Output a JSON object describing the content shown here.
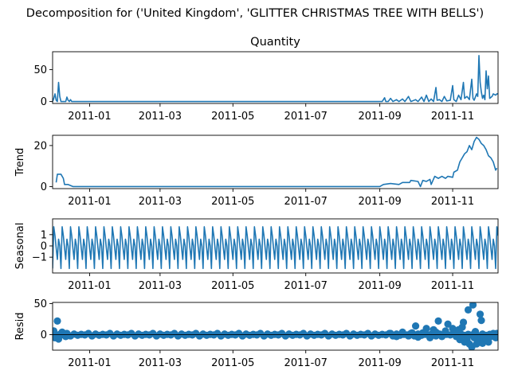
{
  "suptitle": "Decomposition for ('United Kingdom', 'GLITTER CHRISTMAS TREE WITH BELLS')",
  "colors": {
    "line": "#1f77b4",
    "axis": "#000000",
    "background": "#ffffff"
  },
  "x_tick_labels": [
    "2011-01",
    "2011-03",
    "2011-05",
    "2011-07",
    "2011-09",
    "2011-11"
  ],
  "chart_data": [
    {
      "type": "line",
      "title": "Quantity",
      "ylabel": "",
      "x_range": [
        "2010-12-01",
        "2011-12-09"
      ],
      "ylim": [
        -3,
        78
      ],
      "yticks": [
        0,
        50
      ],
      "x_ticks": [
        "2011-01-01",
        "2011-03-01",
        "2011-05-01",
        "2011-07-01",
        "2011-09-01",
        "2011-11-01"
      ],
      "series": [
        {
          "points": [
            [
              "2010-12-01",
              0
            ],
            [
              "2010-12-02",
              5
            ],
            [
              "2010-12-03",
              12
            ],
            [
              "2010-12-04",
              2
            ],
            [
              "2010-12-05",
              0
            ],
            [
              "2010-12-06",
              30
            ],
            [
              "2010-12-07",
              8
            ],
            [
              "2010-12-08",
              0
            ],
            [
              "2010-12-09",
              0
            ],
            [
              "2010-12-10",
              0
            ],
            [
              "2010-12-11",
              0
            ],
            [
              "2010-12-12",
              0
            ],
            [
              "2010-12-13",
              7
            ],
            [
              "2010-12-14",
              2
            ],
            [
              "2010-12-15",
              0
            ],
            [
              "2010-12-16",
              3
            ],
            [
              "2010-12-17",
              0
            ],
            [
              "2010-12-18",
              0
            ],
            [
              "2011-09-03",
              0
            ],
            [
              "2011-09-05",
              6
            ],
            [
              "2011-09-06",
              0
            ],
            [
              "2011-09-08",
              0
            ],
            [
              "2011-09-10",
              5
            ],
            [
              "2011-09-12",
              0
            ],
            [
              "2011-09-15",
              3
            ],
            [
              "2011-09-17",
              0
            ],
            [
              "2011-09-20",
              4
            ],
            [
              "2011-09-22",
              0
            ],
            [
              "2011-09-25",
              8
            ],
            [
              "2011-09-27",
              0
            ],
            [
              "2011-10-01",
              3
            ],
            [
              "2011-10-03",
              0
            ],
            [
              "2011-10-06",
              7
            ],
            [
              "2011-10-08",
              0
            ],
            [
              "2011-10-10",
              10
            ],
            [
              "2011-10-12",
              0
            ],
            [
              "2011-10-14",
              4
            ],
            [
              "2011-10-16",
              0
            ],
            [
              "2011-10-18",
              22
            ],
            [
              "2011-10-19",
              2
            ],
            [
              "2011-10-21",
              3
            ],
            [
              "2011-10-23",
              0
            ],
            [
              "2011-10-25",
              8
            ],
            [
              "2011-10-27",
              1
            ],
            [
              "2011-10-30",
              2
            ],
            [
              "2011-11-01",
              25
            ],
            [
              "2011-11-02",
              3
            ],
            [
              "2011-11-04",
              0
            ],
            [
              "2011-11-06",
              10
            ],
            [
              "2011-11-08",
              3
            ],
            [
              "2011-11-10",
              30
            ],
            [
              "2011-11-11",
              5
            ],
            [
              "2011-11-13",
              8
            ],
            [
              "2011-11-15",
              3
            ],
            [
              "2011-11-17",
              35
            ],
            [
              "2011-11-18",
              5
            ],
            [
              "2011-11-19",
              2
            ],
            [
              "2011-11-21",
              12
            ],
            [
              "2011-11-22",
              8
            ],
            [
              "2011-11-23",
              72
            ],
            [
              "2011-11-24",
              30
            ],
            [
              "2011-11-25",
              15
            ],
            [
              "2011-11-26",
              5
            ],
            [
              "2011-11-27",
              10
            ],
            [
              "2011-11-28",
              3
            ],
            [
              "2011-11-29",
              48
            ],
            [
              "2011-11-30",
              20
            ],
            [
              "2011-12-01",
              40
            ],
            [
              "2011-12-02",
              5
            ],
            [
              "2011-12-04",
              8
            ],
            [
              "2011-12-05",
              12
            ],
            [
              "2011-12-07",
              10
            ],
            [
              "2011-12-08",
              12
            ],
            [
              "2011-12-09",
              12
            ]
          ]
        }
      ]
    },
    {
      "type": "line",
      "title": "",
      "ylabel": "Trend",
      "x_range": [
        "2010-12-01",
        "2011-12-09"
      ],
      "ylim": [
        -1,
        25
      ],
      "yticks": [
        0,
        20
      ],
      "x_ticks": [
        "2011-01-01",
        "2011-03-01",
        "2011-05-01",
        "2011-07-01",
        "2011-09-01",
        "2011-11-01"
      ],
      "series": [
        {
          "points": [
            [
              "2010-12-04",
              2
            ],
            [
              "2010-12-05",
              6
            ],
            [
              "2010-12-08",
              6
            ],
            [
              "2010-12-10",
              4
            ],
            [
              "2010-12-11",
              1
            ],
            [
              "2010-12-14",
              1
            ],
            [
              "2010-12-16",
              0.5
            ],
            [
              "2010-12-18",
              0
            ],
            [
              "2011-09-01",
              0
            ],
            [
              "2011-09-04",
              1
            ],
            [
              "2011-09-10",
              1.5
            ],
            [
              "2011-09-17",
              1
            ],
            [
              "2011-09-20",
              2
            ],
            [
              "2011-09-26",
              2
            ],
            [
              "2011-09-27",
              3
            ],
            [
              "2011-10-03",
              2.5
            ],
            [
              "2011-10-05",
              0
            ],
            [
              "2011-10-07",
              3
            ],
            [
              "2011-10-10",
              2.5
            ],
            [
              "2011-10-13",
              3.5
            ],
            [
              "2011-10-14",
              1
            ],
            [
              "2011-10-17",
              5
            ],
            [
              "2011-10-20",
              4
            ],
            [
              "2011-10-23",
              5
            ],
            [
              "2011-10-26",
              4
            ],
            [
              "2011-10-28",
              5
            ],
            [
              "2011-11-01",
              4.5
            ],
            [
              "2011-11-02",
              7
            ],
            [
              "2011-11-05",
              8
            ],
            [
              "2011-11-07",
              12
            ],
            [
              "2011-11-09",
              14
            ],
            [
              "2011-11-11",
              16
            ],
            [
              "2011-11-13",
              17
            ],
            [
              "2011-11-15",
              20
            ],
            [
              "2011-11-17",
              18
            ],
            [
              "2011-11-19",
              22
            ],
            [
              "2011-11-21",
              24
            ],
            [
              "2011-11-23",
              23
            ],
            [
              "2011-11-25",
              21
            ],
            [
              "2011-11-27",
              20
            ],
            [
              "2011-11-29",
              18
            ],
            [
              "2011-12-01",
              15
            ],
            [
              "2011-12-03",
              14
            ],
            [
              "2011-12-05",
              12
            ],
            [
              "2011-12-07",
              8
            ],
            [
              "2011-12-08",
              9
            ]
          ]
        }
      ]
    },
    {
      "type": "line",
      "title": "",
      "ylabel": "Seasonal",
      "x_range": [
        "2010-12-01",
        "2011-12-09"
      ],
      "ylim": [
        -2.4,
        2.4
      ],
      "yticks": [
        -1,
        0,
        1
      ],
      "x_ticks": [
        "2011-01-01",
        "2011-03-01",
        "2011-05-01",
        "2011-07-01",
        "2011-09-01",
        "2011-11-01"
      ],
      "series": [
        {
          "pattern": "weekly",
          "period_days": 7,
          "start_date": "2010-12-01",
          "end_date": "2011-12-09",
          "weekly_values": [
            -2.0,
            1.7,
            0.9,
            -0.2,
            -1.2,
            0.6,
            0.0
          ]
        }
      ]
    },
    {
      "type": "scatter",
      "title": "",
      "ylabel": "Resid",
      "x_range": [
        "2010-12-01",
        "2011-12-09"
      ],
      "ylim": [
        -25,
        52
      ],
      "yticks": [
        0,
        50
      ],
      "x_ticks": [
        "2011-01-01",
        "2011-03-01",
        "2011-05-01",
        "2011-07-01",
        "2011-09-01",
        "2011-11-01"
      ],
      "series": [
        {
          "baseline_start": "2010-12-01",
          "baseline_end": "2011-12-09",
          "baseline_step_days": 3,
          "baseline_values": [
            1,
            -1,
            0.5,
            -0.5,
            2,
            -2
          ],
          "points": [
            [
              "2010-12-02",
              6
            ],
            [
              "2010-12-03",
              -5
            ],
            [
              "2010-12-05",
              22
            ],
            [
              "2010-12-06",
              -7
            ],
            [
              "2010-12-09",
              4
            ],
            [
              "2010-12-12",
              -3
            ],
            [
              "2011-09-10",
              2
            ],
            [
              "2011-09-15",
              -3
            ],
            [
              "2011-09-20",
              4
            ],
            [
              "2011-09-25",
              -2
            ],
            [
              "2011-09-28",
              3
            ],
            [
              "2011-10-01",
              14
            ],
            [
              "2011-10-03",
              -4
            ],
            [
              "2011-10-07",
              3
            ],
            [
              "2011-10-10",
              10
            ],
            [
              "2011-10-13",
              -5
            ],
            [
              "2011-10-16",
              8
            ],
            [
              "2011-10-18",
              4
            ],
            [
              "2011-10-20",
              22
            ],
            [
              "2011-10-23",
              -3
            ],
            [
              "2011-10-26",
              6
            ],
            [
              "2011-10-28",
              17
            ],
            [
              "2011-11-01",
              10
            ],
            [
              "2011-11-02",
              5
            ],
            [
              "2011-11-04",
              -3
            ],
            [
              "2011-11-06",
              8
            ],
            [
              "2011-11-07",
              -8
            ],
            [
              "2011-11-09",
              12
            ],
            [
              "2011-11-10",
              20
            ],
            [
              "2011-11-11",
              -12
            ],
            [
              "2011-11-13",
              -8
            ],
            [
              "2011-11-14",
              40
            ],
            [
              "2011-11-15",
              -15
            ],
            [
              "2011-11-17",
              -20
            ],
            [
              "2011-11-18",
              48
            ],
            [
              "2011-11-19",
              -5
            ],
            [
              "2011-11-20",
              5
            ],
            [
              "2011-11-21",
              -15
            ],
            [
              "2011-11-23",
              -10
            ],
            [
              "2011-11-24",
              33
            ],
            [
              "2011-11-25",
              23
            ],
            [
              "2011-11-26",
              -14
            ],
            [
              "2011-11-27",
              -5
            ],
            [
              "2011-11-29",
              -8
            ],
            [
              "2011-12-01",
              -12
            ],
            [
              "2011-12-03",
              -3
            ],
            [
              "2011-12-05",
              2
            ],
            [
              "2011-12-07",
              -5
            ],
            [
              "2011-12-09",
              -2
            ]
          ]
        }
      ]
    }
  ]
}
